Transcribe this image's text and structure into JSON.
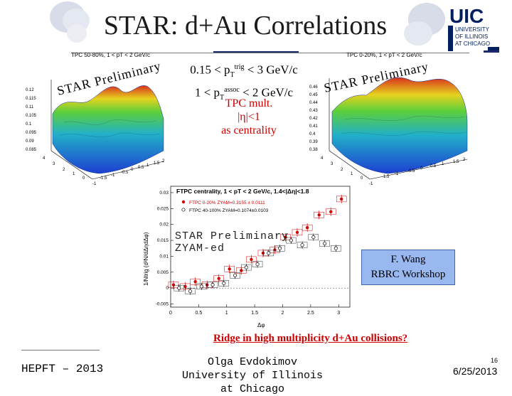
{
  "title": "STAR: d+Au Correlations",
  "logo": {
    "line1": "UIC",
    "line2": "UNIVERSITY",
    "line3": "OF ILLINOIS",
    "line4": "AT CHICAGO"
  },
  "left_plot": {
    "header": "TPC 50-80%, 1 < pT < 2 GeV/c",
    "watermark": "STAR Preliminary",
    "z_ticks": [
      "0.12",
      "0.115",
      "0.11",
      "0.105",
      "0.1",
      "0.095",
      "0.09",
      "0.085"
    ],
    "x_ticks": [
      "-1.5",
      "-1",
      "-0.5",
      "0",
      "0.5",
      "1",
      "1.5",
      "2"
    ],
    "y_ticks": [
      "4",
      "3",
      "2",
      "1",
      "0",
      "-1"
    ]
  },
  "right_plot": {
    "header": "TPC 0-20%, 1 < pT < 2 GeV/c",
    "watermark": "STAR Preliminary",
    "z_ticks": [
      "0.46",
      "0.45",
      "0.44",
      "0.43",
      "0.42",
      "0.41",
      "0.4",
      "0.39",
      "0.38"
    ],
    "x_ticks": [
      "-1.5",
      "-1",
      "-0.5",
      "0",
      "0.5",
      "1",
      "1.5",
      "2"
    ],
    "y_ticks": [
      "4",
      "3",
      "2",
      "1",
      "0",
      "-1"
    ]
  },
  "cuts": {
    "line1_pre": "0.15 < p",
    "line1_sub": "T",
    "line1_sup": "trig",
    "line1_post": " < 3 GeV/c",
    "line2_pre": "1 < p",
    "line2_sub": "T",
    "line2_sup": "assoc",
    "line2_post": " < 2 GeV/c"
  },
  "tpc_mult": {
    "line1": "TPC mult.",
    "line2": "|η|<1",
    "line3": "as centrality"
  },
  "bottom_plot": {
    "legend_title": "FTPC centrality, 1 < pT < 2 GeV/c, 1.4<|Δη|<1.8",
    "legend_red": "FTPC 0-20% ZYAM=0.3155 ± 0.0111",
    "legend_black": "FTPC 40-100% ZYAM=0.1074±0.0103",
    "ylabel": "1/Ntrig (d²N/dΔηdΔφ)",
    "xlabel": "Δφ",
    "y_ticks": [
      "0.03",
      "0.025",
      "0.02",
      "0.015",
      "0.01",
      "0.005",
      "0",
      "-0.005"
    ],
    "x_ticks": [
      "0",
      "0.5",
      "1",
      "1.5",
      "2",
      "2.5",
      "3"
    ],
    "watermark_line1": "STAR Preliminary",
    "watermark_line2": "ZYAM-ed"
  },
  "chart_data": {
    "type": "scatter",
    "title": "FTPC centrality, 1 < pT < 2 GeV/c, 1.4<|Δη|<1.8",
    "xlabel": "Δφ",
    "ylabel": "1/Ntrig (d²N/dΔηdΔφ)",
    "xlim": [
      0,
      3.2
    ],
    "ylim": [
      -0.006,
      0.032
    ],
    "series": [
      {
        "name": "FTPC 0-20% ZYAM=0.3155 ± 0.0111",
        "x": [
          0.05,
          0.26,
          0.44,
          0.65,
          0.86,
          1.05,
          1.26,
          1.44,
          1.65,
          1.86,
          2.05,
          2.26,
          2.44,
          2.65,
          2.86,
          3.05
        ],
        "y": [
          0.001,
          0.0005,
          0.002,
          0.001,
          0.003,
          0.006,
          0.0055,
          0.009,
          0.011,
          0.012,
          0.016,
          0.0175,
          0.019,
          0.023,
          0.024,
          0.028
        ]
      },
      {
        "name": "FTPC 40-100% ZYAM=0.1074±0.0103",
        "x": [
          0.15,
          0.35,
          0.55,
          0.75,
          0.95,
          1.15,
          1.35,
          1.55,
          1.75,
          1.95,
          2.15,
          2.35,
          2.55,
          2.75,
          2.95
        ],
        "y": [
          0.0,
          -0.001,
          0.0005,
          0.001,
          0.0015,
          0.004,
          0.0065,
          0.0075,
          0.011,
          0.0125,
          0.015,
          0.0135,
          0.016,
          0.014,
          0.0125
        ]
      }
    ]
  },
  "wang": {
    "line1": "F. Wang",
    "line2": "RBRC Workshop"
  },
  "ridge": "Ridge in high multiplicity d+Au collisions?",
  "footer": {
    "left": "HEPFT – 2013",
    "center_line1": "Olga Evdokimov",
    "center_line2": "University of Illinois at Chicago",
    "slide_number": "16",
    "date": "6/25/2013"
  }
}
